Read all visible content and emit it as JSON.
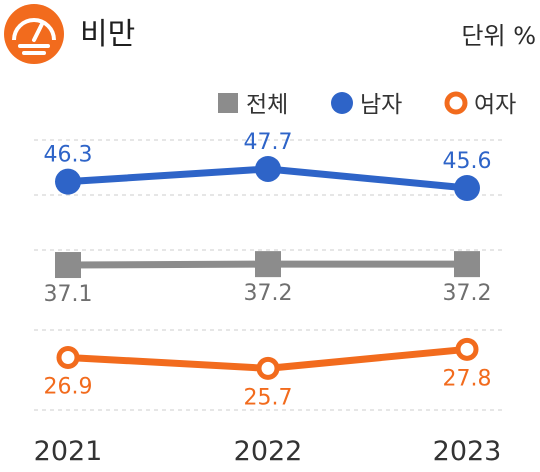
{
  "header": {
    "title": "비만",
    "unit": "단위 %",
    "icon": "scale-icon",
    "icon_color": "#F26B1D"
  },
  "legend": [
    {
      "label": "전체",
      "color": "#8C8C8C",
      "marker": "square"
    },
    {
      "label": "남자",
      "color": "#2E64C8",
      "marker": "circle"
    },
    {
      "label": "여자",
      "color": "#F26B1D",
      "marker": "ring"
    }
  ],
  "chart_data": {
    "type": "line",
    "x": [
      "2021",
      "2022",
      "2023"
    ],
    "series": [
      {
        "name": "남자",
        "values": [
          46.3,
          47.7,
          45.6
        ],
        "color": "#2E64C8",
        "marker": "circle",
        "label_position": "above"
      },
      {
        "name": "전체",
        "values": [
          37.1,
          37.2,
          37.2
        ],
        "color": "#8C8C8C",
        "marker": "square",
        "label_position": "below"
      },
      {
        "name": "여자",
        "values": [
          26.9,
          25.7,
          27.8
        ],
        "color": "#F26B1D",
        "marker": "ring",
        "label_position": "below"
      }
    ],
    "ylabel": "단위 %",
    "ylim": [
      20,
      52
    ],
    "grid": true,
    "legend_position": "top-right"
  }
}
